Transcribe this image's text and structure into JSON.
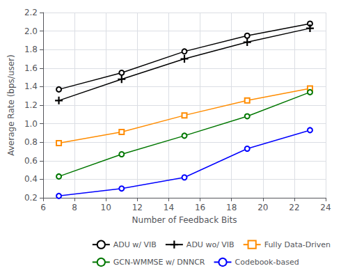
{
  "chart_data": {
    "type": "line",
    "xlabel": "Number of Feedback Bits",
    "ylabel": "Average Rate (bps/user)",
    "x": [
      7,
      11,
      15,
      19,
      23
    ],
    "series": [
      {
        "name": "ADU w/ VIB",
        "color": "#000000",
        "marker": "circle",
        "line_style": "solid",
        "values": [
          1.37,
          1.55,
          1.78,
          1.95,
          2.08
        ]
      },
      {
        "name": "ADU wo/ VIB",
        "color": "#000000",
        "marker": "plus",
        "line_style": "solid",
        "values": [
          1.25,
          1.48,
          1.7,
          1.88,
          2.03
        ]
      },
      {
        "name": "Fully Data-Driven",
        "color": "#FF8C00",
        "marker": "square",
        "line_style": "solid",
        "values": [
          0.79,
          0.91,
          1.09,
          1.25,
          1.38
        ]
      },
      {
        "name": "GCN-WMMSE w/ DNNCR",
        "color": "#007700",
        "marker": "circle",
        "line_style": "solid",
        "values": [
          0.43,
          0.67,
          0.87,
          1.08,
          1.34
        ]
      },
      {
        "name": "Codebook-based",
        "color": "#0000FF",
        "marker": "circle",
        "line_style": "solid",
        "values": [
          0.22,
          0.3,
          0.42,
          0.73,
          0.93
        ]
      }
    ],
    "xlim": [
      6,
      24
    ],
    "ylim": [
      0.2,
      2.2
    ],
    "xticks": [
      6,
      8,
      10,
      12,
      14,
      16,
      18,
      20,
      22,
      24
    ],
    "yticks": [
      0.2,
      0.4,
      0.6,
      0.8,
      {
        "value": 1,
        "label": "1.0"
      },
      1.2,
      1.4,
      1.6,
      1.8,
      {
        "value": 2,
        "label": "2.0"
      },
      2.2
    ],
    "grid": true,
    "legend": "lower right"
  }
}
